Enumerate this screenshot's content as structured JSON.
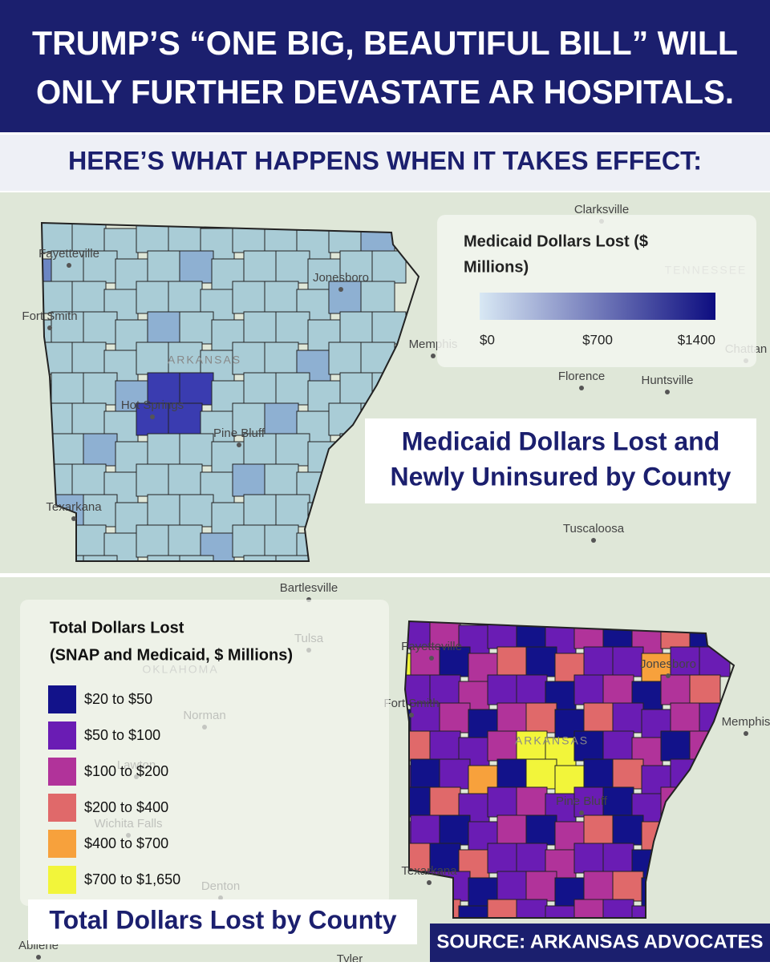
{
  "header": {
    "title_lines": [
      "TRUMP’S “ONE BIG, BEAUTIFUL BILL” WILL",
      "ONLY FURTHER DEVASTATE AR HOSPITALS."
    ],
    "subtitle": "HERE’S WHAT HAPPENS WHEN IT TAKES EFFECT:"
  },
  "map1": {
    "legend": {
      "title_lines": [
        "Medicaid Dollars Lost ($",
        "Millions)"
      ],
      "ticks": [
        "$0",
        "$700",
        "$1400"
      ],
      "colors": [
        "#d8e8f4",
        "#0d0d80"
      ]
    },
    "caption_lines": [
      "Medicaid Dollars Lost and",
      "Newly Uninsured by County"
    ],
    "places": [
      "Clarksville",
      "Fayetteville",
      "Jonesboro",
      "TENNESSEE",
      "Fort Smith",
      "ARKANSAS",
      "Memphis",
      "Chattan",
      "Florence",
      "Huntsville",
      "Hot Springs",
      "Pine Bluff",
      "Texarkana",
      "Tuscaloosa"
    ]
  },
  "map2": {
    "legend": {
      "title_lines": [
        "Total Dollars Lost",
        "(SNAP and Medicaid, $ Millions)"
      ],
      "items": [
        {
          "label": "$20 to $50",
          "color": "#12128a"
        },
        {
          "label": "$50 to $100",
          "color": "#6a1cb4"
        },
        {
          "label": "$100 to $200",
          "color": "#b1339a"
        },
        {
          "label": "$200 to $400",
          "color": "#e0696a"
        },
        {
          "label": "$400 to $700",
          "color": "#f7a13c"
        },
        {
          "label": "$700 to $1,650",
          "color": "#f2f53a"
        }
      ]
    },
    "caption": "Total Dollars Lost by County",
    "places": [
      "Bartlesville",
      "Tulsa",
      "OKLAHOMA",
      "Fayetteville",
      "Jonesboro",
      "Fort Smith",
      "Memphis",
      "ARKANSAS",
      "Norman",
      "Lawton",
      "Wichita Falls",
      "Pine Bluff",
      "Texarkana",
      "Denton",
      "Abilene",
      "Tyler"
    ]
  },
  "source": "SOURCE: ARKANSAS ADVOCATES"
}
